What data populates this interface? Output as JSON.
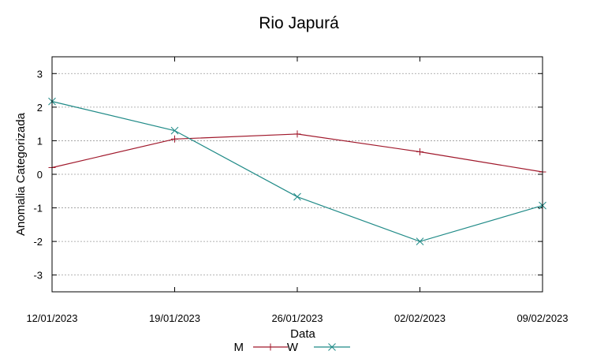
{
  "chart_data": {
    "type": "line",
    "title": "Rio Japurá",
    "xlabel": "Data",
    "ylabel": "Anomalia Categorizada",
    "categories": [
      "12/01/2023",
      "19/01/2023",
      "26/01/2023",
      "02/02/2023",
      "09/02/2023"
    ],
    "yticks": [
      3,
      2,
      1,
      0,
      -1,
      -2,
      -3
    ],
    "ylim": [
      -3.5,
      3.5
    ],
    "grid": true,
    "legend_position": "bottom-center",
    "series": [
      {
        "name": "M",
        "color": "#a0182b",
        "marker": "plus",
        "values": [
          0.2,
          1.05,
          1.2,
          0.67,
          0.07
        ]
      },
      {
        "name": "W",
        "color": "#1f8a87",
        "marker": "cross",
        "values": [
          2.17,
          1.3,
          -0.67,
          -2.0,
          -0.93
        ]
      }
    ]
  }
}
